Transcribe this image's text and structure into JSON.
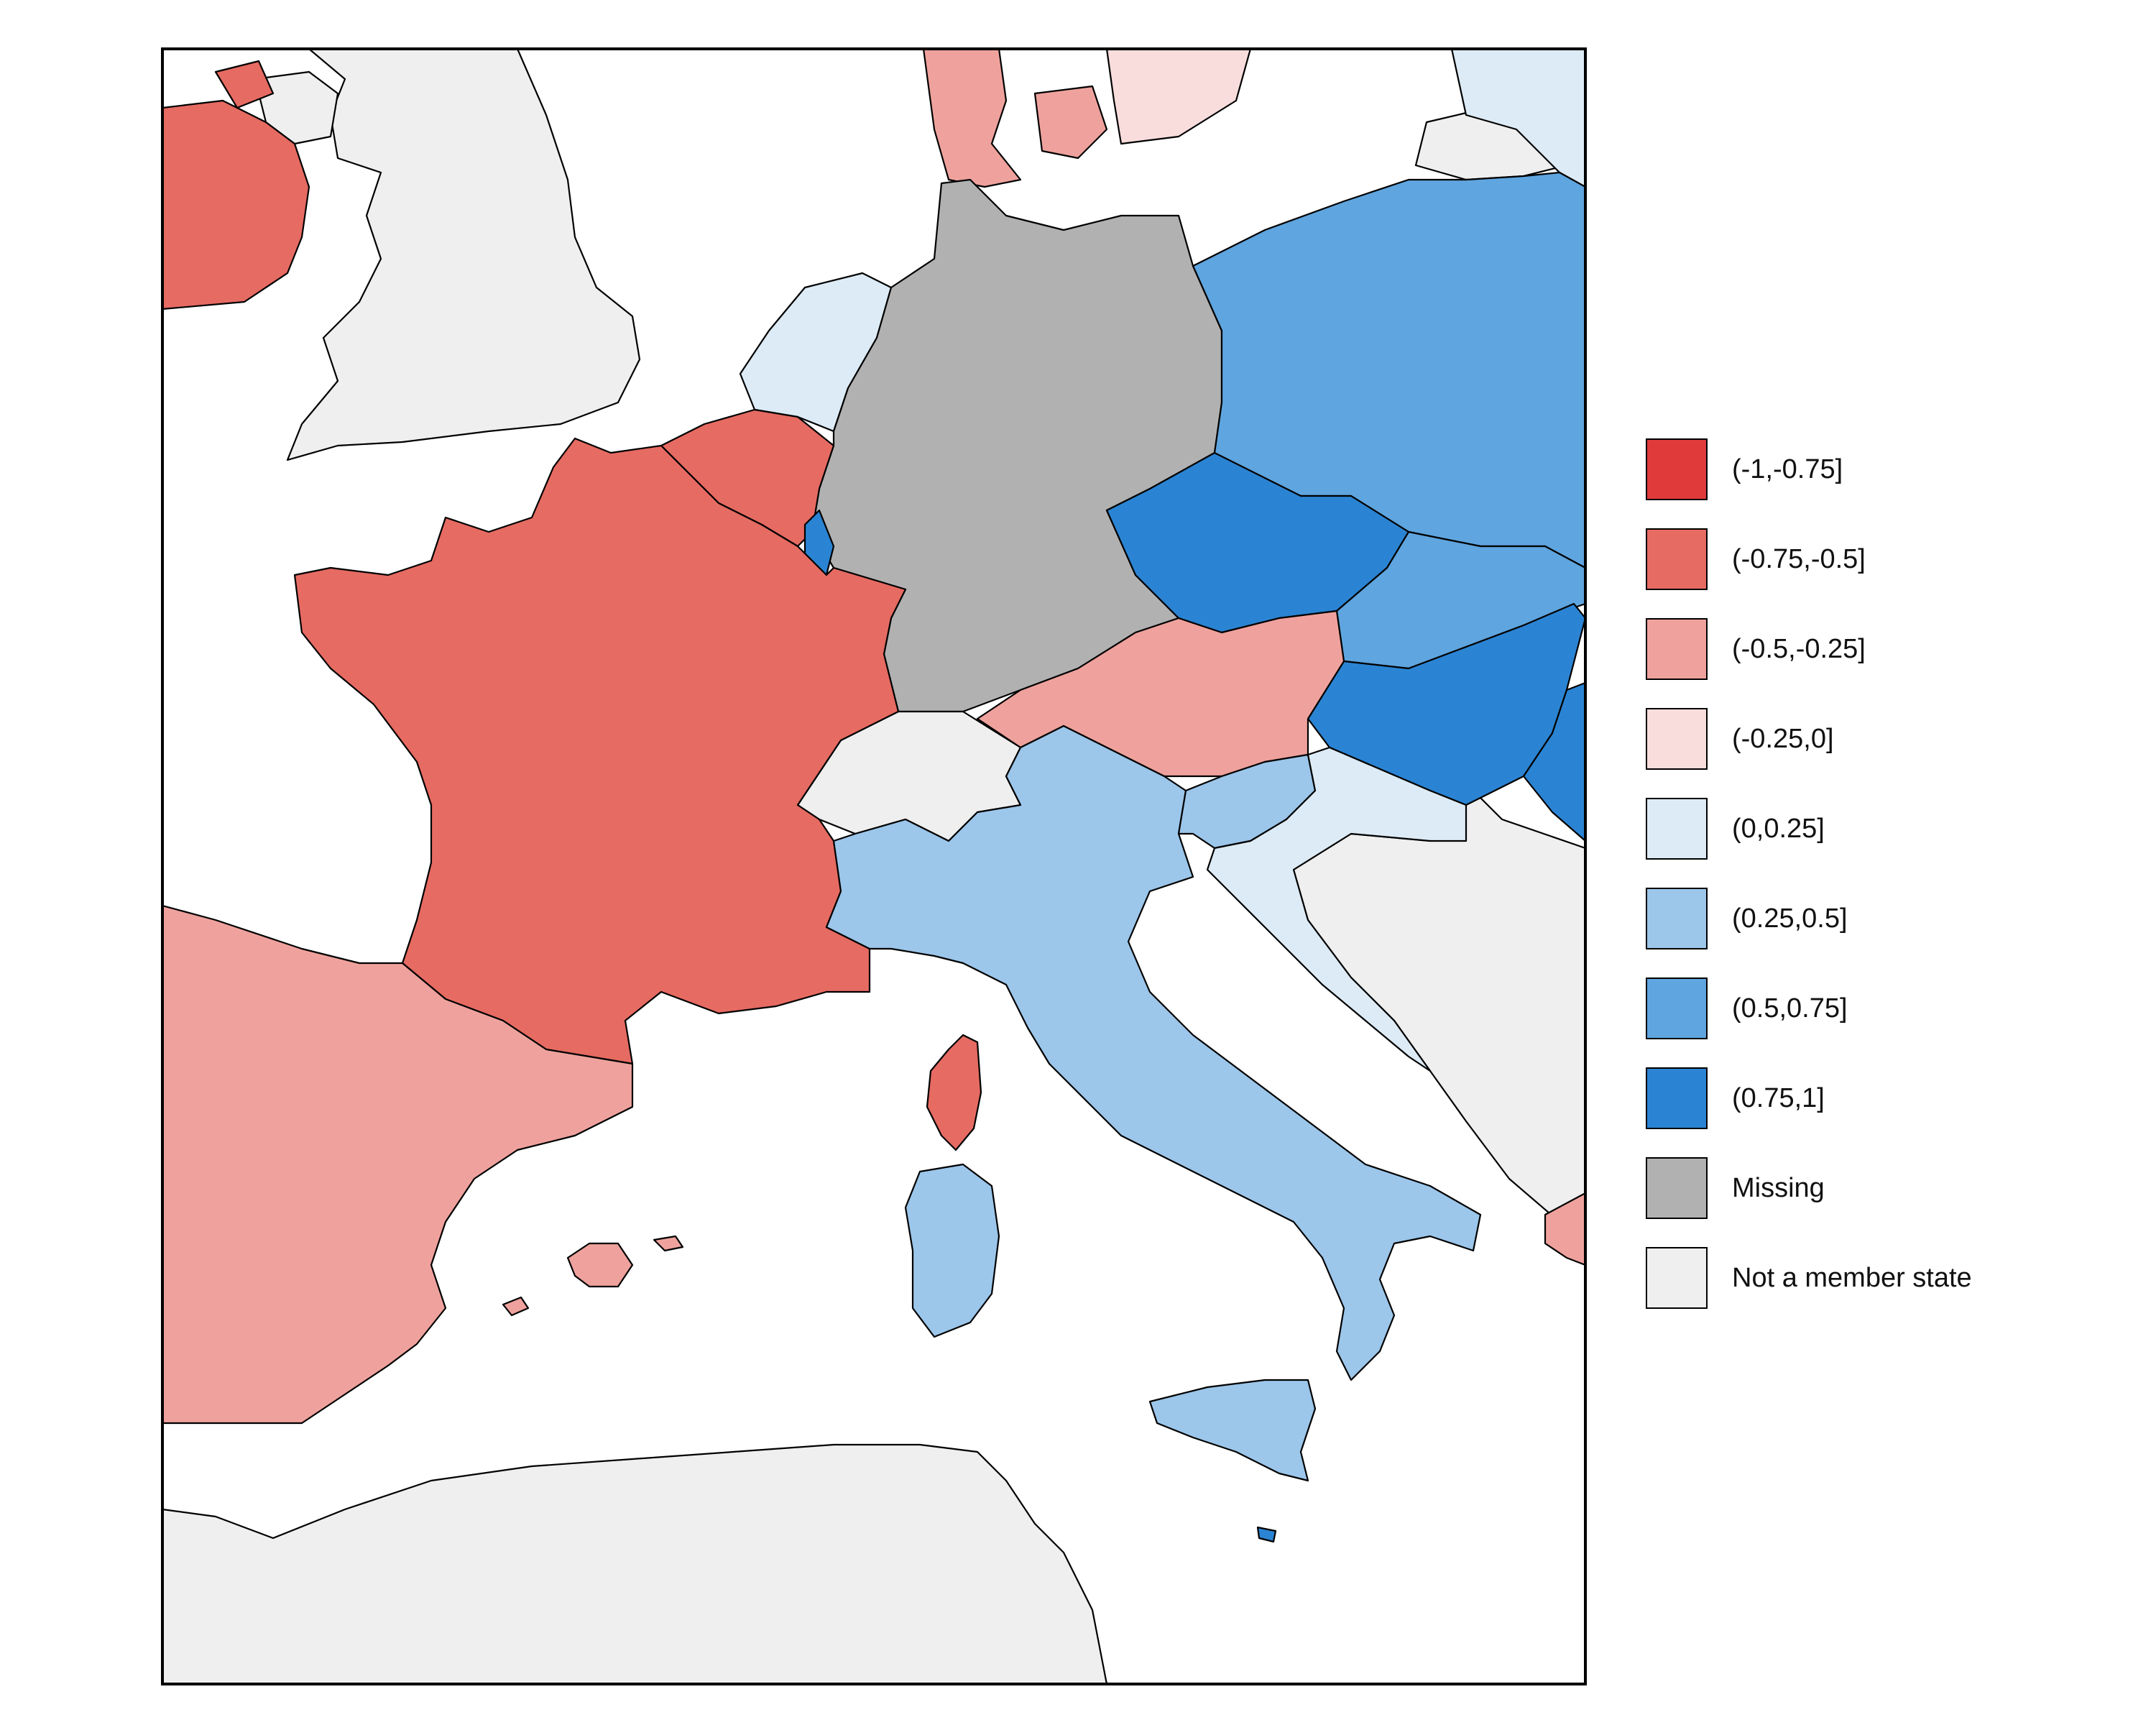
{
  "legend": {
    "items": [
      {
        "label": "(-1,-0.75]",
        "color": "#e03a3a"
      },
      {
        "label": "(-0.75,-0.5]",
        "color": "#e66b62"
      },
      {
        "label": "(-0.5,-0.25]",
        "color": "#efa29d"
      },
      {
        "label": "(-0.25,0]",
        "color": "#f9dddd"
      },
      {
        "label": "(0,0.25]",
        "color": "#dcebf6"
      },
      {
        "label": "(0.25,0.5]",
        "color": "#9cc6ea"
      },
      {
        "label": "(0.5,0.75]",
        "color": "#5fa5df"
      },
      {
        "label": "(0.75,1]",
        "color": "#2b84d3"
      },
      {
        "label": "Missing",
        "color": "#b1b1b1"
      },
      {
        "label": "Not a member state",
        "color": "#efefef"
      }
    ]
  },
  "regions": [
    {
      "name": "ireland",
      "class": "(-0.75,-0.5]"
    },
    {
      "name": "united-kingdom",
      "class": "Not a member state"
    },
    {
      "name": "denmark",
      "class": "(-0.5,-0.25]"
    },
    {
      "name": "sweden",
      "class": "(-0.25,0]"
    },
    {
      "name": "lithuania",
      "class": "(0,0.25]"
    },
    {
      "name": "russia-kaliningrad",
      "class": "Not a member state"
    },
    {
      "name": "netherlands",
      "class": "(0,0.25]"
    },
    {
      "name": "germany",
      "class": "Missing"
    },
    {
      "name": "poland",
      "class": "(0.5,0.75]"
    },
    {
      "name": "belgium",
      "class": "(-0.75,-0.5]"
    },
    {
      "name": "luxembourg",
      "class": "(0.75,1]"
    },
    {
      "name": "france",
      "class": "(-0.75,-0.5]"
    },
    {
      "name": "corsica",
      "class": "(-0.75,-0.5]"
    },
    {
      "name": "czechia",
      "class": "(0.75,1]"
    },
    {
      "name": "slovakia",
      "class": "(0.5,0.75]"
    },
    {
      "name": "hungary",
      "class": "(0.75,1]"
    },
    {
      "name": "romania",
      "class": "(0.75,1]"
    },
    {
      "name": "austria",
      "class": "(-0.5,-0.25]"
    },
    {
      "name": "switzerland",
      "class": "Not a member state"
    },
    {
      "name": "italy",
      "class": "(0.25,0.5]"
    },
    {
      "name": "sardinia",
      "class": "(0.25,0.5]"
    },
    {
      "name": "sicily",
      "class": "(0.25,0.5]"
    },
    {
      "name": "malta",
      "class": "(0.75,1]"
    },
    {
      "name": "slovenia",
      "class": "(0.25,0.5]"
    },
    {
      "name": "croatia",
      "class": "(0,0.25]"
    },
    {
      "name": "spain",
      "class": "(-0.5,-0.25]"
    },
    {
      "name": "balearic-islands",
      "class": "(-0.5,-0.25]"
    },
    {
      "name": "greece",
      "class": "(-0.5,-0.25]"
    },
    {
      "name": "balkans",
      "class": "Not a member state"
    },
    {
      "name": "north-africa",
      "class": "Not a member state"
    }
  ]
}
